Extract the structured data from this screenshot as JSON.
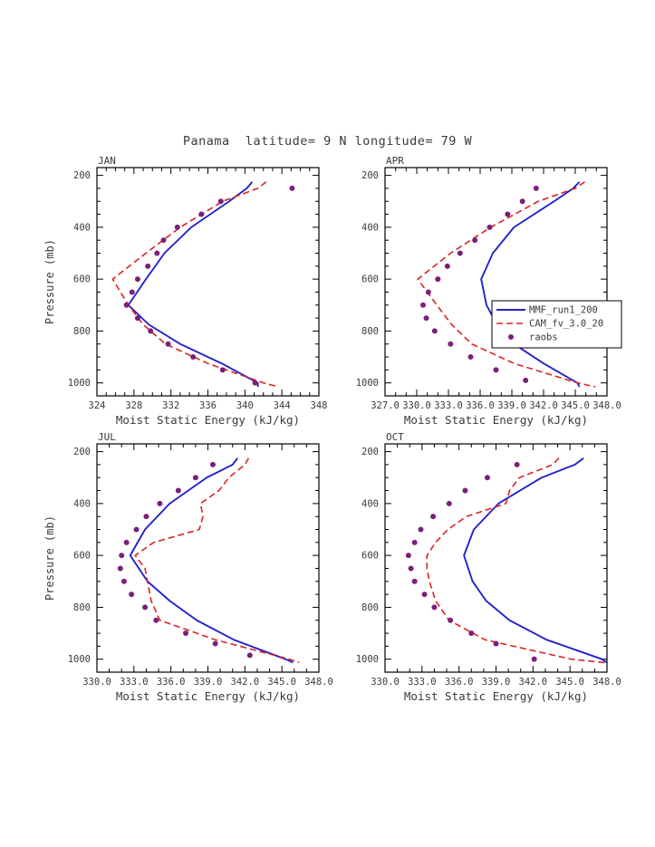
{
  "title": "Panama  latitude= 9 N longitude= 79 W",
  "colors": {
    "mmf": "#2222cc",
    "cam": "#dd2222",
    "raobs": "#7a1f7a",
    "axis": "#000000",
    "text": "#3a3a3a"
  },
  "legend": {
    "items": [
      {
        "label": "MMF_run1_200",
        "style": "solid",
        "color_key": "mmf"
      },
      {
        "label": "CAM_fv_3.0_20",
        "style": "dashed",
        "color_key": "cam"
      },
      {
        "label": "raobs",
        "style": "dots",
        "color_key": "raobs"
      }
    ]
  },
  "chart_data": [
    {
      "type": "line",
      "panel": "JAN",
      "title": "JAN",
      "xlabel": "Moist Static Energy (kJ/kg)",
      "ylabel": "Pressure (mb)",
      "show_ylabel": true,
      "show_legend": false,
      "xlim": [
        324,
        348
      ],
      "ylim": [
        170,
        1050
      ],
      "xticks": [
        324,
        328,
        332,
        336,
        340,
        344,
        348
      ],
      "xtick_labels": [
        "324",
        "328",
        "332",
        "336",
        "340",
        "344",
        "348"
      ],
      "x_minor_step": 1,
      "yticks": [
        200,
        400,
        600,
        800,
        1000
      ],
      "ytick_labels": [
        "200",
        "400",
        "600",
        "800",
        "1000"
      ],
      "y_minor_step": 50,
      "series": [
        {
          "name": "MMF_run1_200",
          "color_key": "mmf",
          "style": "solid",
          "pressure_mb": [
            225,
            250,
            300,
            400,
            500,
            600,
            700,
            775,
            850,
            925,
            1000,
            1015
          ],
          "values_kjkg": [
            340.8,
            340.2,
            338.3,
            334.2,
            331.3,
            329.3,
            327.4,
            329.6,
            333.0,
            337.5,
            341.4,
            341.4
          ]
        },
        {
          "name": "CAM_fv_3.0_20",
          "color_key": "cam",
          "style": "dashed",
          "pressure_mb": [
            225,
            250,
            300,
            400,
            500,
            600,
            700,
            775,
            850,
            925,
            1000,
            1015
          ],
          "values_kjkg": [
            342.3,
            341.4,
            337.6,
            333.0,
            329.3,
            325.7,
            327.4,
            329.0,
            331.4,
            336.0,
            342.0,
            343.6
          ]
        },
        {
          "name": "raobs",
          "color_key": "raobs",
          "style": "dots",
          "pressure_mb": [
            250,
            300,
            350,
            400,
            450,
            500,
            550,
            600,
            650,
            700,
            750,
            800,
            850,
            900,
            950,
            1000
          ],
          "values_kjkg": [
            345.1,
            337.4,
            335.3,
            332.7,
            331.2,
            330.5,
            329.5,
            328.4,
            327.8,
            327.2,
            328.4,
            329.8,
            331.7,
            334.4,
            337.6,
            341.1
          ]
        }
      ]
    },
    {
      "type": "line",
      "panel": "APR",
      "title": "APR",
      "xlabel": "Moist Static Energy (kJ/kg)",
      "ylabel": "Pressure (mb)",
      "show_ylabel": false,
      "show_legend": true,
      "xlim": [
        327,
        348
      ],
      "ylim": [
        170,
        1050
      ],
      "xticks": [
        327,
        330,
        333,
        336,
        339,
        342,
        345,
        348
      ],
      "xtick_labels": [
        "327.0",
        "330.0",
        "333.0",
        "336.0",
        "339.0",
        "342.0",
        "345.0",
        "348.0"
      ],
      "x_minor_step": 1,
      "yticks": [
        200,
        400,
        600,
        800,
        1000
      ],
      "ytick_labels": [
        "200",
        "400",
        "600",
        "800",
        "1000"
      ],
      "y_minor_step": 50,
      "series": [
        {
          "name": "MMF_run1_200",
          "color_key": "mmf",
          "style": "solid",
          "pressure_mb": [
            225,
            250,
            300,
            400,
            500,
            600,
            700,
            775,
            850,
            925,
            1000,
            1015
          ],
          "values_kjkg": [
            345.4,
            344.8,
            343.0,
            339.2,
            337.2,
            336.1,
            336.6,
            337.6,
            339.2,
            342.0,
            345.2,
            345.4
          ]
        },
        {
          "name": "CAM_fv_3.0_20",
          "color_key": "cam",
          "style": "dashed",
          "pressure_mb": [
            225,
            250,
            300,
            400,
            500,
            600,
            700,
            775,
            850,
            925,
            1000,
            1015
          ],
          "values_kjkg": [
            345.9,
            345.0,
            341.5,
            337.0,
            333.2,
            330.1,
            331.9,
            333.3,
            335.2,
            339.2,
            345.2,
            346.9
          ]
        },
        {
          "name": "raobs",
          "color_key": "raobs",
          "style": "dots",
          "pressure_mb": [
            250,
            300,
            350,
            400,
            450,
            500,
            550,
            600,
            650,
            700,
            750,
            800,
            850,
            900,
            950,
            990
          ],
          "values_kjkg": [
            341.3,
            340.0,
            338.6,
            336.9,
            335.5,
            334.1,
            332.9,
            332.0,
            331.1,
            330.6,
            330.9,
            331.7,
            333.2,
            335.1,
            337.5,
            340.3
          ]
        }
      ]
    },
    {
      "type": "line",
      "panel": "JUL",
      "title": "JUL",
      "xlabel": "Moist Static Energy (kJ/kg)",
      "ylabel": "Pressure (mb)",
      "show_ylabel": true,
      "show_legend": false,
      "xlim": [
        330,
        348
      ],
      "ylim": [
        170,
        1050
      ],
      "xticks": [
        330,
        333,
        336,
        339,
        342,
        345,
        348
      ],
      "xtick_labels": [
        "330.0",
        "333.0",
        "336.0",
        "339.0",
        "342.0",
        "345.0",
        "348.0"
      ],
      "x_minor_step": 1,
      "yticks": [
        200,
        400,
        600,
        800,
        1000
      ],
      "ytick_labels": [
        "200",
        "400",
        "600",
        "800",
        "1000"
      ],
      "y_minor_step": 50,
      "series": [
        {
          "name": "MMF_run1_200",
          "color_key": "mmf",
          "style": "solid",
          "pressure_mb": [
            225,
            250,
            300,
            400,
            500,
            600,
            700,
            775,
            850,
            925,
            1000,
            1013
          ],
          "values_kjkg": [
            341.4,
            341.0,
            338.9,
            335.9,
            333.9,
            332.7,
            334.1,
            335.9,
            338.1,
            341.1,
            345.3,
            345.9
          ]
        },
        {
          "name": "CAM_fv_3.0_20",
          "color_key": "cam",
          "style": "dashed",
          "pressure_mb": [
            225,
            250,
            300,
            350,
            400,
            450,
            500,
            550,
            600,
            650,
            700,
            775,
            850,
            925,
            1000,
            1013
          ],
          "values_kjkg": [
            342.3,
            342.0,
            340.7,
            339.9,
            338.4,
            338.6,
            338.3,
            334.6,
            333.1,
            333.9,
            334.1,
            334.4,
            335.1,
            339.6,
            345.6,
            346.4
          ]
        },
        {
          "name": "raobs",
          "color_key": "raobs",
          "style": "dots",
          "pressure_mb": [
            250,
            300,
            350,
            400,
            450,
            500,
            550,
            600,
            650,
            700,
            750,
            800,
            850,
            900,
            940,
            985
          ],
          "values_kjkg": [
            339.4,
            338.0,
            336.6,
            335.1,
            334.0,
            333.2,
            332.4,
            332.0,
            331.9,
            332.2,
            332.8,
            333.9,
            334.8,
            337.2,
            339.6,
            342.4
          ]
        }
      ]
    },
    {
      "type": "line",
      "panel": "OCT",
      "title": "OCT",
      "xlabel": "Moist Static Energy (kJ/kg)",
      "ylabel": "Pressure (mb)",
      "show_ylabel": false,
      "show_legend": false,
      "xlim": [
        330,
        348
      ],
      "ylim": [
        170,
        1050
      ],
      "xticks": [
        330,
        333,
        336,
        339,
        342,
        345,
        348
      ],
      "xtick_labels": [
        "330.0",
        "333.0",
        "336.0",
        "339.0",
        "342.0",
        "345.0",
        "348.0"
      ],
      "x_minor_step": 1,
      "yticks": [
        200,
        400,
        600,
        800,
        1000
      ],
      "ytick_labels": [
        "200",
        "400",
        "600",
        "800",
        "1000"
      ],
      "y_minor_step": 50,
      "series": [
        {
          "name": "MMF_run1_200",
          "color_key": "mmf",
          "style": "solid",
          "pressure_mb": [
            225,
            250,
            300,
            400,
            500,
            600,
            700,
            775,
            850,
            925,
            1000,
            1013
          ],
          "values_kjkg": [
            346.1,
            345.4,
            342.7,
            339.2,
            337.2,
            336.4,
            337.1,
            338.2,
            340.1,
            343.1,
            347.6,
            348.0
          ]
        },
        {
          "name": "CAM_fv_3.0_20",
          "color_key": "cam",
          "style": "dashed",
          "pressure_mb": [
            225,
            250,
            300,
            350,
            400,
            450,
            500,
            550,
            600,
            650,
            700,
            775,
            850,
            925,
            1000,
            1013
          ],
          "values_kjkg": [
            344.1,
            343.6,
            340.9,
            340.1,
            339.8,
            336.6,
            335.1,
            334.1,
            333.4,
            333.4,
            333.6,
            334.1,
            335.2,
            338.1,
            345.1,
            347.8
          ]
        },
        {
          "name": "raobs",
          "color_key": "raobs",
          "style": "dots",
          "pressure_mb": [
            250,
            300,
            350,
            400,
            450,
            500,
            550,
            600,
            650,
            700,
            750,
            800,
            850,
            900,
            940,
            1000
          ],
          "values_kjkg": [
            340.7,
            338.3,
            336.5,
            335.2,
            333.9,
            332.9,
            332.4,
            331.9,
            332.1,
            332.4,
            333.2,
            334.0,
            335.3,
            337.0,
            339.0,
            342.1
          ]
        }
      ]
    }
  ]
}
